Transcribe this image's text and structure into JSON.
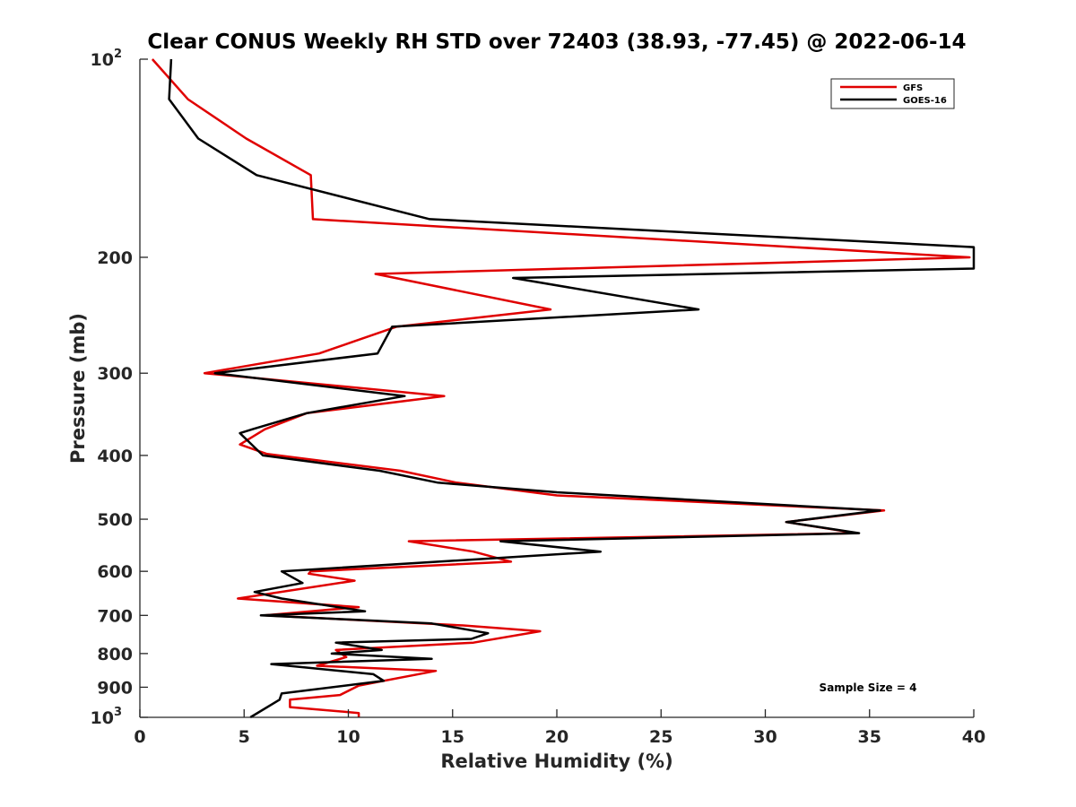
{
  "chart_data": {
    "type": "line",
    "title": "Clear CONUS Weekly RH STD over 72403 (38.93, -77.45) @ 2022-06-14",
    "xlabel": "Relative Humidity (%)",
    "ylabel": "Pressure (mb)",
    "xlim": [
      0,
      40
    ],
    "ylim": [
      100,
      1000
    ],
    "yscale": "log",
    "y_reversed": true,
    "grid": false,
    "legend_position": "top-right",
    "x_ticks": [
      "0",
      "5",
      "10",
      "15",
      "20",
      "25",
      "30",
      "35",
      "40"
    ],
    "y_ticks": [
      {
        "value": 100,
        "base": "10",
        "exp": "2"
      },
      {
        "value": 200,
        "label": "200"
      },
      {
        "value": 300,
        "label": "300"
      },
      {
        "value": 400,
        "label": "400"
      },
      {
        "value": 500,
        "label": "500"
      },
      {
        "value": 600,
        "label": "600"
      },
      {
        "value": 700,
        "label": "700"
      },
      {
        "value": 800,
        "label": "800"
      },
      {
        "value": 900,
        "label": "900"
      },
      {
        "value": 1000,
        "base": "10",
        "exp": "3"
      }
    ],
    "annotation": "Sample Size = 4",
    "series": [
      {
        "name": "GFS",
        "color": "#e00000",
        "points": [
          [
            0.6,
            100
          ],
          [
            2.3,
            115
          ],
          [
            5.1,
            132
          ],
          [
            8.2,
            150
          ],
          [
            8.3,
            175
          ],
          [
            39.8,
            200
          ],
          [
            11.3,
            212
          ],
          [
            19.7,
            240
          ],
          [
            12.3,
            255
          ],
          [
            8.6,
            280
          ],
          [
            3.1,
            300
          ],
          [
            14.6,
            325
          ],
          [
            8.0,
            345
          ],
          [
            6.0,
            365
          ],
          [
            4.8,
            385
          ],
          [
            6.1,
            398
          ],
          [
            12.5,
            422
          ],
          [
            15.2,
            440
          ],
          [
            20.0,
            460
          ],
          [
            35.7,
            485
          ],
          [
            31.0,
            505
          ],
          [
            34.4,
            525
          ],
          [
            12.9,
            540
          ],
          [
            16.0,
            560
          ],
          [
            17.8,
            580
          ],
          [
            8.2,
            600
          ],
          [
            8.1,
            605
          ],
          [
            10.3,
            620
          ],
          [
            4.7,
            660
          ],
          [
            10.5,
            680
          ],
          [
            6.0,
            700
          ],
          [
            15.5,
            725
          ],
          [
            19.2,
            740
          ],
          [
            16.0,
            770
          ],
          [
            9.4,
            790
          ],
          [
            9.9,
            810
          ],
          [
            8.5,
            835
          ],
          [
            14.2,
            850
          ],
          [
            10.5,
            895
          ],
          [
            9.6,
            925
          ],
          [
            7.2,
            940
          ],
          [
            7.2,
            965
          ],
          [
            10.5,
            985
          ],
          [
            10.5,
            1000
          ]
        ]
      },
      {
        "name": "GOES-16",
        "color": "#000000",
        "points": [
          [
            1.5,
            100
          ],
          [
            1.4,
            115
          ],
          [
            2.8,
            132
          ],
          [
            5.6,
            150
          ],
          [
            13.9,
            175
          ],
          [
            40.0,
            193
          ],
          [
            40.0,
            208
          ],
          [
            17.9,
            215
          ],
          [
            26.8,
            240
          ],
          [
            12.1,
            255
          ],
          [
            11.4,
            280
          ],
          [
            3.6,
            300
          ],
          [
            12.7,
            325
          ],
          [
            8.0,
            345
          ],
          [
            5.4,
            365
          ],
          [
            4.8,
            370
          ],
          [
            5.9,
            400
          ],
          [
            11.5,
            422
          ],
          [
            14.3,
            440
          ],
          [
            20.0,
            455
          ],
          [
            35.5,
            485
          ],
          [
            31.0,
            505
          ],
          [
            34.5,
            525
          ],
          [
            17.3,
            540
          ],
          [
            22.1,
            560
          ],
          [
            6.8,
            600
          ],
          [
            7.8,
            625
          ],
          [
            5.5,
            645
          ],
          [
            6.8,
            660
          ],
          [
            10.8,
            690
          ],
          [
            5.8,
            700
          ],
          [
            14.0,
            720
          ],
          [
            16.7,
            745
          ],
          [
            15.9,
            760
          ],
          [
            9.4,
            770
          ],
          [
            11.6,
            790
          ],
          [
            9.2,
            800
          ],
          [
            14.0,
            815
          ],
          [
            6.3,
            830
          ],
          [
            11.2,
            860
          ],
          [
            11.7,
            880
          ],
          [
            6.8,
            920
          ],
          [
            6.7,
            940
          ],
          [
            5.3,
            1000
          ]
        ]
      }
    ]
  }
}
